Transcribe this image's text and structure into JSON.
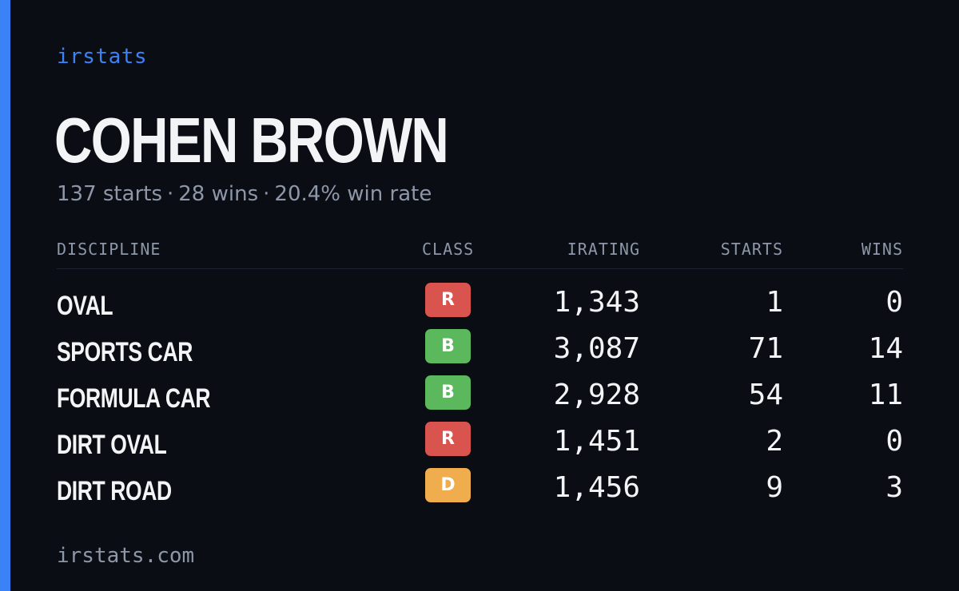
{
  "brand": "irstats",
  "player": {
    "name": "COHEN BROWN",
    "summary": {
      "starts": "137 starts",
      "wins": "28 wins",
      "win_rate": "20.4% win rate",
      "separator": "·"
    }
  },
  "table": {
    "headers": {
      "discipline": "DISCIPLINE",
      "class": "CLASS",
      "irating": "IRATING",
      "starts": "STARTS",
      "wins": "WINS"
    },
    "rows": [
      {
        "discipline": "OVAL",
        "class": "R",
        "class_color": "#d9534f",
        "irating": "1,343",
        "starts": "1",
        "wins": "0"
      },
      {
        "discipline": "SPORTS CAR",
        "class": "B",
        "class_color": "#5cb85c",
        "irating": "3,087",
        "starts": "71",
        "wins": "14"
      },
      {
        "discipline": "FORMULA CAR",
        "class": "B",
        "class_color": "#5cb85c",
        "irating": "2,928",
        "starts": "54",
        "wins": "11"
      },
      {
        "discipline": "DIRT OVAL",
        "class": "R",
        "class_color": "#d9534f",
        "irating": "1,451",
        "starts": "2",
        "wins": "0"
      },
      {
        "discipline": "DIRT ROAD",
        "class": "D",
        "class_color": "#f0ad4e",
        "irating": "1,456",
        "starts": "9",
        "wins": "3"
      }
    ]
  },
  "footer": "irstats.com",
  "colors": {
    "accent": "#3b82f6",
    "background": "#0b0d14"
  }
}
